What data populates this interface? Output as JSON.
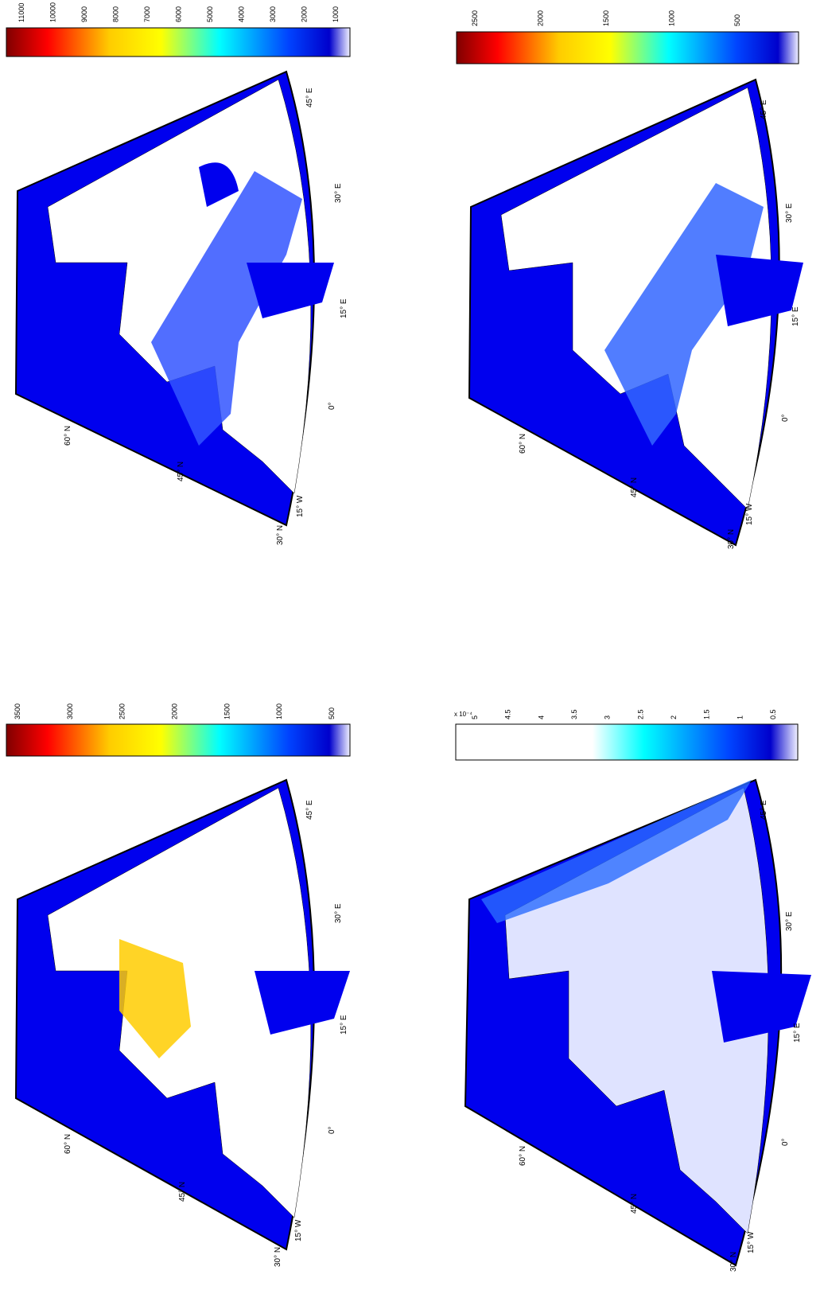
{
  "colors": {
    "ocean": "#0000ee",
    "land": "#ffffff",
    "border": "#000000",
    "river": "#3344cc"
  },
  "panels": [
    {
      "id": "top-left",
      "colorbar": {
        "type": "jet",
        "ticks": [
          "11000",
          "10000",
          "9000",
          "8000",
          "7000",
          "6000",
          "5000",
          "4000",
          "3000",
          "2000",
          "1000"
        ],
        "exponent": ""
      },
      "lat_labels": [
        "60° N",
        "45° N",
        "30° N"
      ],
      "lon_labels": [
        "15° W",
        "0°",
        "15° E",
        "30° E",
        "45° E"
      ]
    },
    {
      "id": "top-right",
      "colorbar": {
        "type": "jet",
        "ticks": [
          "2500",
          "2000",
          "1500",
          "1000",
          "500"
        ],
        "exponent": ""
      },
      "lat_labels": [
        "60° N",
        "45° N",
        "30° N"
      ],
      "lon_labels": [
        "15° W",
        "0°",
        "15° E",
        "30° E",
        "45° E"
      ]
    },
    {
      "id": "bottom-left",
      "colorbar": {
        "type": "jet",
        "ticks": [
          "3500",
          "3000",
          "2500",
          "2000",
          "1500",
          "1000",
          "500"
        ],
        "exponent": ""
      },
      "lat_labels": [
        "60° N",
        "45° N",
        "30° N"
      ],
      "lon_labels": [
        "15° W",
        "0°",
        "15° E",
        "30° E",
        "45° E"
      ]
    },
    {
      "id": "bottom-right",
      "colorbar": {
        "type": "blues",
        "ticks": [
          "5",
          "4.5",
          "4",
          "3.5",
          "3",
          "2.5",
          "2",
          "1.5",
          "1",
          "0.5"
        ],
        "exponent": "x 10⁻⁴"
      },
      "lat_labels": [
        "60° N",
        "45° N",
        "30° N"
      ],
      "lon_labels": [
        "15° W",
        "0°",
        "15° E",
        "30° E",
        "45° E"
      ]
    }
  ]
}
